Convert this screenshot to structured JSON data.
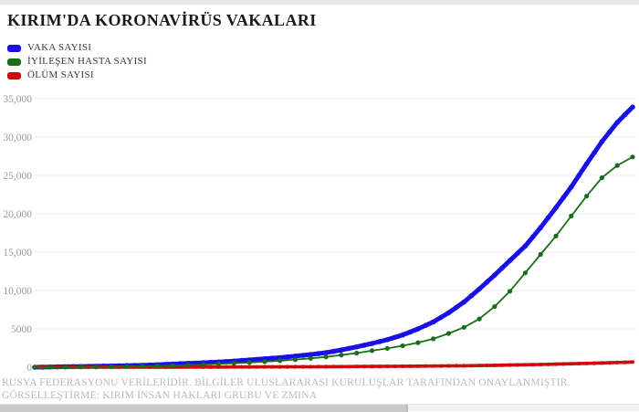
{
  "header": {
    "title": "KIRIM'DA KORONAVİRÜS VAKALARI"
  },
  "legend": {
    "items": [
      {
        "label": "VAKA SAYISI",
        "color": "#1a10e6"
      },
      {
        "label": "İYİLEŞEN HASTA SAYISI",
        "color": "#186e18"
      },
      {
        "label": "ÖLÜM SAYISI",
        "color": "#cc0d0d"
      }
    ]
  },
  "chart_data": {
    "type": "line",
    "title": "KIRIM'DA KORONAVİRÜS VAKALARI",
    "xlabel": "",
    "ylabel": "",
    "ylim": [
      0,
      35000
    ],
    "grid": "horizontal",
    "legend_position": "top-left",
    "x_axis_labels_visible": false,
    "yticks": [
      {
        "label": "35,000",
        "value": 35000
      },
      {
        "label": "30,000",
        "value": 30000
      },
      {
        "label": "25,000",
        "value": 25000
      },
      {
        "label": "20,000",
        "value": 20000
      },
      {
        "label": "15,000",
        "value": 15000
      },
      {
        "label": "10,000",
        "value": 10000
      },
      {
        "label": "5000",
        "value": 5000
      },
      {
        "label": "0",
        "value": 0
      }
    ],
    "series": [
      {
        "name": "VAKA SAYISI",
        "color": "#1a10e6",
        "style": "thick-line-with-dense-markers",
        "values": [
          0,
          30,
          70,
          100,
          130,
          170,
          210,
          250,
          320,
          420,
          500,
          580,
          680,
          800,
          950,
          1100,
          1250,
          1450,
          1650,
          1900,
          2250,
          2650,
          3100,
          3600,
          4200,
          5000,
          5900,
          7100,
          8500,
          10200,
          12000,
          13900,
          15800,
          18200,
          20800,
          23500,
          26500,
          29400,
          31900,
          33900
        ]
      },
      {
        "name": "İYİLEŞEN HASTA SAYISI",
        "color": "#186e18",
        "style": "thin-line-with-dot-markers",
        "values": [
          0,
          5,
          15,
          30,
          50,
          75,
          100,
          130,
          170,
          220,
          280,
          350,
          430,
          520,
          620,
          730,
          860,
          1000,
          1150,
          1350,
          1600,
          1850,
          2150,
          2450,
          2800,
          3200,
          3700,
          4400,
          5200,
          6300,
          7900,
          9900,
          12300,
          14700,
          17100,
          19700,
          22300,
          24700,
          26300,
          27400
        ]
      },
      {
        "name": "ÖLÜM SAYISI",
        "color": "#cc0d0d",
        "style": "thick-line-with-dense-markers",
        "values": [
          0,
          1,
          2,
          3,
          5,
          7,
          9,
          11,
          14,
          17,
          20,
          24,
          28,
          33,
          38,
          44,
          50,
          57,
          65,
          73,
          82,
          92,
          103,
          115,
          128,
          142,
          158,
          176,
          196,
          220,
          248,
          280,
          316,
          356,
          400,
          448,
          500,
          556,
          616,
          680
        ]
      }
    ]
  },
  "footer": {
    "line1": "RUSYA FEDERASYONU VERİLERİDİR. BİLGİLER ULUSLARARASI KURULUŞLAR TARAFINDAN ONAYLANMIŞTIR.",
    "line2": "GÖRSELLEŞTİRME: KIRIM İNSAN HAKLARI GRUBU VE ZMINA"
  }
}
